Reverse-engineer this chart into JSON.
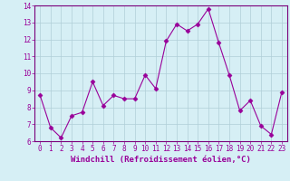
{
  "x": [
    0,
    1,
    2,
    3,
    4,
    5,
    6,
    7,
    8,
    9,
    10,
    11,
    12,
    13,
    14,
    15,
    16,
    17,
    18,
    19,
    20,
    21,
    22,
    23
  ],
  "y": [
    8.7,
    6.8,
    6.2,
    7.5,
    7.7,
    9.5,
    8.1,
    8.7,
    8.5,
    8.5,
    9.9,
    9.1,
    11.9,
    12.9,
    12.5,
    12.9,
    13.8,
    11.8,
    9.9,
    7.8,
    8.4,
    6.9,
    6.4,
    8.9
  ],
  "line_color": "#990099",
  "marker": "D",
  "marker_size": 2.5,
  "bg_color": "#d6eff5",
  "grid_color": "#b0cfd8",
  "xlabel": "Windchill (Refroidissement éolien,°C)",
  "xlabel_fontsize": 6.5,
  "tick_fontsize": 5.5,
  "ylim": [
    6,
    14
  ],
  "yticks": [
    6,
    7,
    8,
    9,
    10,
    11,
    12,
    13,
    14
  ],
  "xticks": [
    0,
    1,
    2,
    3,
    4,
    5,
    6,
    7,
    8,
    9,
    10,
    11,
    12,
    13,
    14,
    15,
    16,
    17,
    18,
    19,
    20,
    21,
    22,
    23
  ],
  "axis_label_color": "#990099",
  "tick_color": "#990099",
  "spine_color": "#7a007a"
}
